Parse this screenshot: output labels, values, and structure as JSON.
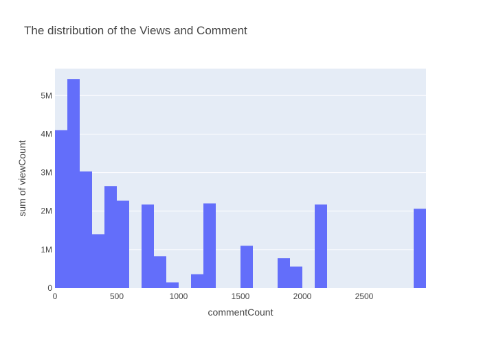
{
  "chart_data": {
    "type": "bar",
    "title": "The distribution of the Views and Comment",
    "xlabel": "commentCount",
    "ylabel": "sum of viewCount",
    "bin_width": 100,
    "xlim": [
      0,
      3000
    ],
    "ylim": [
      0,
      5700000
    ],
    "x_ticks": [
      {
        "value": 0,
        "label": "0"
      },
      {
        "value": 500,
        "label": "500"
      },
      {
        "value": 1000,
        "label": "1000"
      },
      {
        "value": 1500,
        "label": "1500"
      },
      {
        "value": 2000,
        "label": "2000"
      },
      {
        "value": 2500,
        "label": "2500"
      }
    ],
    "y_ticks": [
      {
        "value": 0,
        "label": "0"
      },
      {
        "value": 1000000,
        "label": "1M"
      },
      {
        "value": 2000000,
        "label": "2M"
      },
      {
        "value": 3000000,
        "label": "3M"
      },
      {
        "value": 4000000,
        "label": "4M"
      },
      {
        "value": 5000000,
        "label": "5M"
      }
    ],
    "bins": [
      {
        "x0": 0,
        "x1": 100,
        "value": 4100000
      },
      {
        "x0": 100,
        "x1": 200,
        "value": 5430000
      },
      {
        "x0": 200,
        "x1": 300,
        "value": 3030000
      },
      {
        "x0": 300,
        "x1": 400,
        "value": 1400000
      },
      {
        "x0": 400,
        "x1": 500,
        "value": 2650000
      },
      {
        "x0": 500,
        "x1": 600,
        "value": 2270000
      },
      {
        "x0": 700,
        "x1": 800,
        "value": 2170000
      },
      {
        "x0": 800,
        "x1": 900,
        "value": 830000
      },
      {
        "x0": 900,
        "x1": 1000,
        "value": 150000
      },
      {
        "x0": 1100,
        "x1": 1200,
        "value": 360000
      },
      {
        "x0": 1200,
        "x1": 1300,
        "value": 2200000
      },
      {
        "x0": 1500,
        "x1": 1600,
        "value": 1100000
      },
      {
        "x0": 1800,
        "x1": 1900,
        "value": 780000
      },
      {
        "x0": 1900,
        "x1": 2000,
        "value": 560000
      },
      {
        "x0": 2100,
        "x1": 2200,
        "value": 2170000
      },
      {
        "x0": 2900,
        "x1": 3000,
        "value": 2060000
      }
    ],
    "grid": true,
    "legend": "none",
    "colors": {
      "bar": "#636efa",
      "plot_bg": "#e5ecf6",
      "grid": "#ffffff",
      "text": "#444444",
      "zero_line": "#ffffff"
    }
  }
}
